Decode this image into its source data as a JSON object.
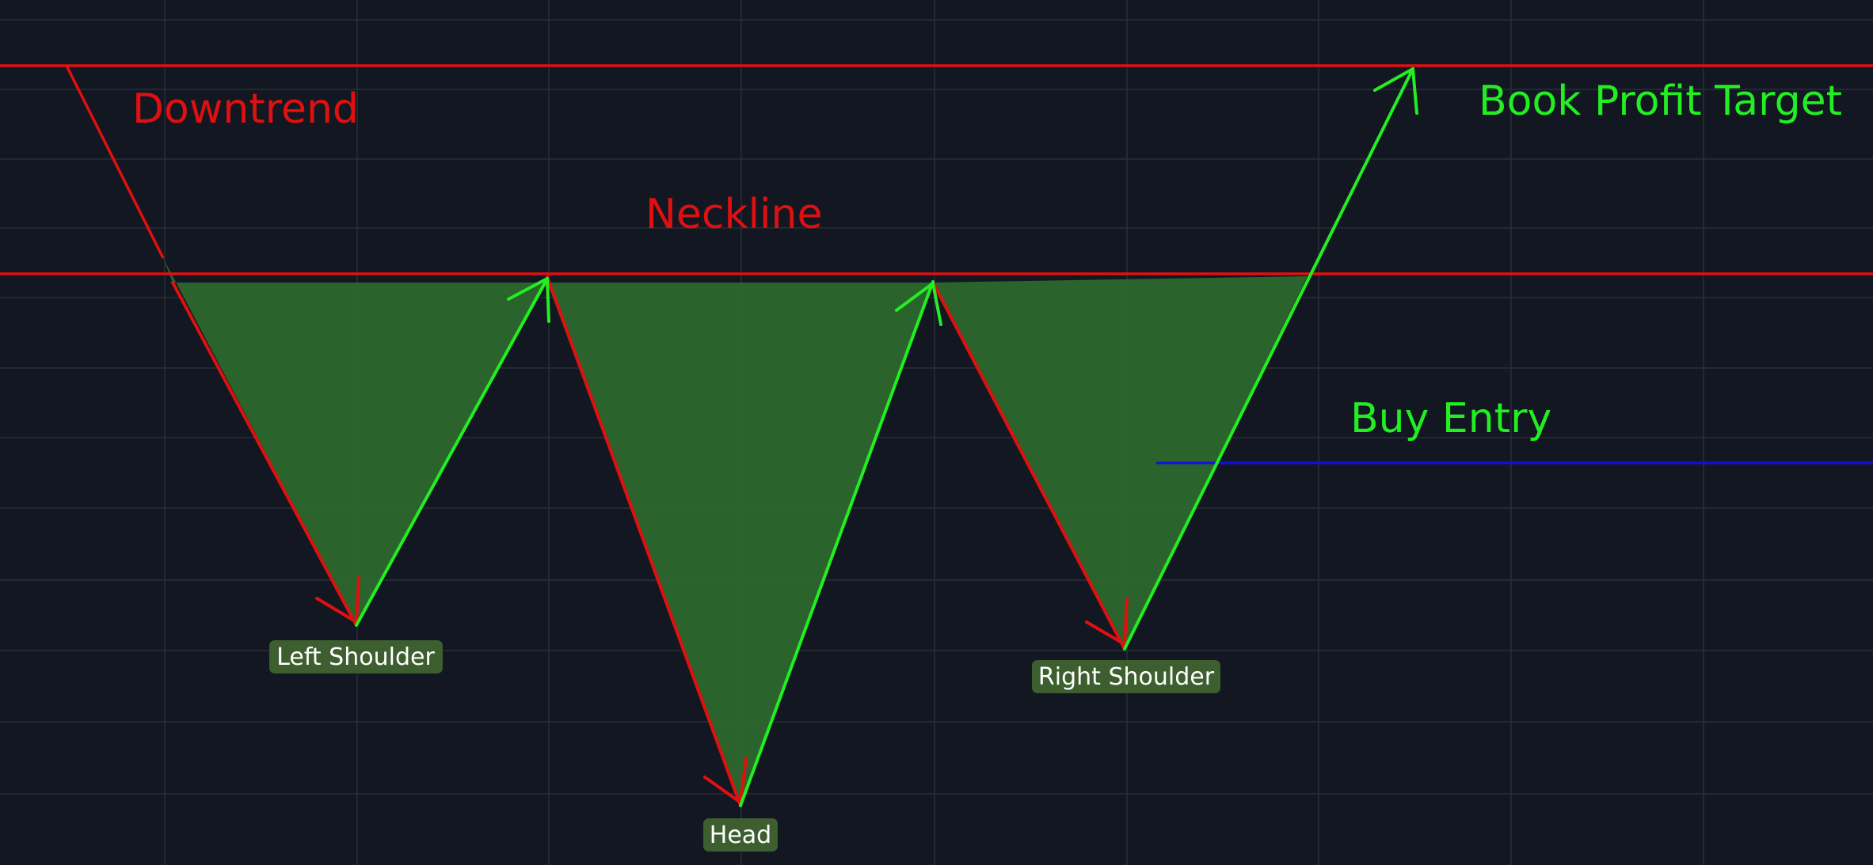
{
  "labels": {
    "downtrend": "Downtrend",
    "neckline": "Neckline",
    "book_profit_target": "Book Profit Target",
    "buy_entry": "Buy Entry",
    "left_shoulder": "Left Shoulder",
    "head": "Head",
    "right_shoulder": "Right Shoulder"
  },
  "colors": {
    "background": "#131722",
    "grid": "#2a2e39",
    "red_line": "#e01010",
    "green_line": "#22ee22",
    "fill_triangle": "#2d6a2d",
    "tag_background": "#3d5e2e",
    "entry_line": "#1010e0"
  },
  "icons": {
    "arrowheads": "arrowhead-icon"
  }
}
